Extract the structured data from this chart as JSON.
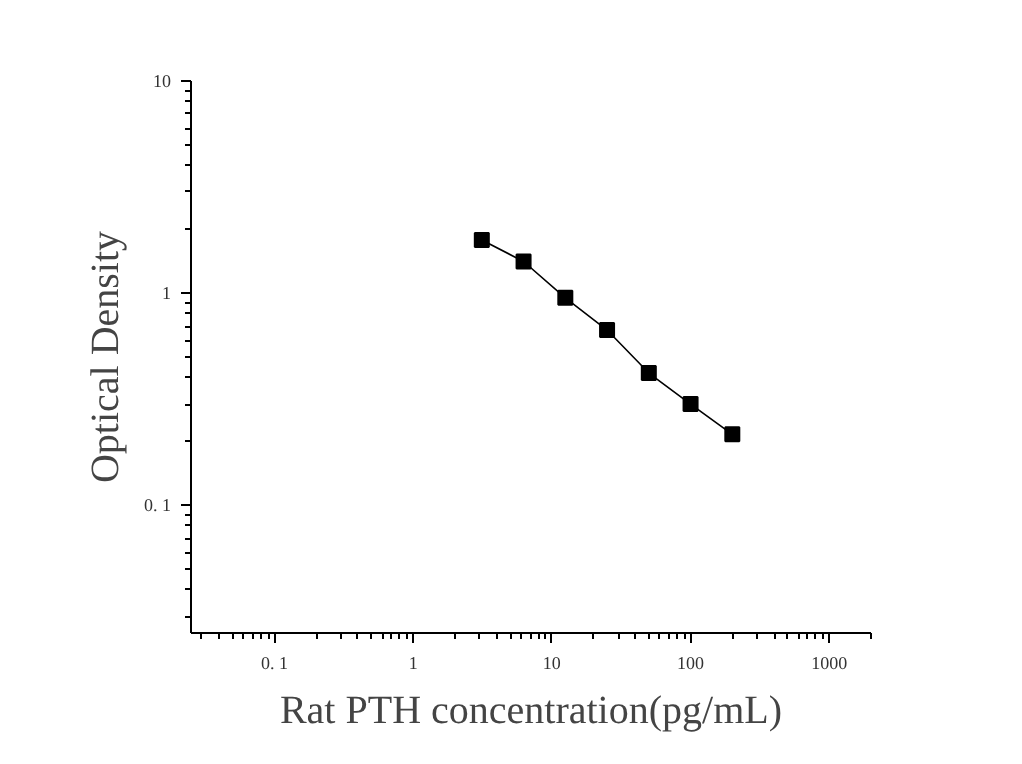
{
  "chart_data": {
    "type": "line",
    "xlabel": "Rat PTH concentration(pg/mL)",
    "ylabel": "Optical Density",
    "log": "xy",
    "grid": false,
    "marker": "square",
    "line_style": "solid",
    "x": [
      3.125,
      6.25,
      12.5,
      25,
      50,
      100,
      200
    ],
    "series": [
      {
        "color": "#000000",
        "values": [
          1.78,
          1.41,
          0.95,
          0.67,
          0.42,
          0.3,
          0.216
        ]
      }
    ],
    "xlim": [
      0.025,
      2000
    ],
    "ylim": [
      0.025,
      10
    ],
    "xticks": [
      {
        "value": 0.1,
        "label": "0. 1"
      },
      1,
      10,
      100,
      1000
    ],
    "yticks": [
      {
        "value": 0.1,
        "label": "0. 1"
      },
      1,
      10
    ]
  }
}
